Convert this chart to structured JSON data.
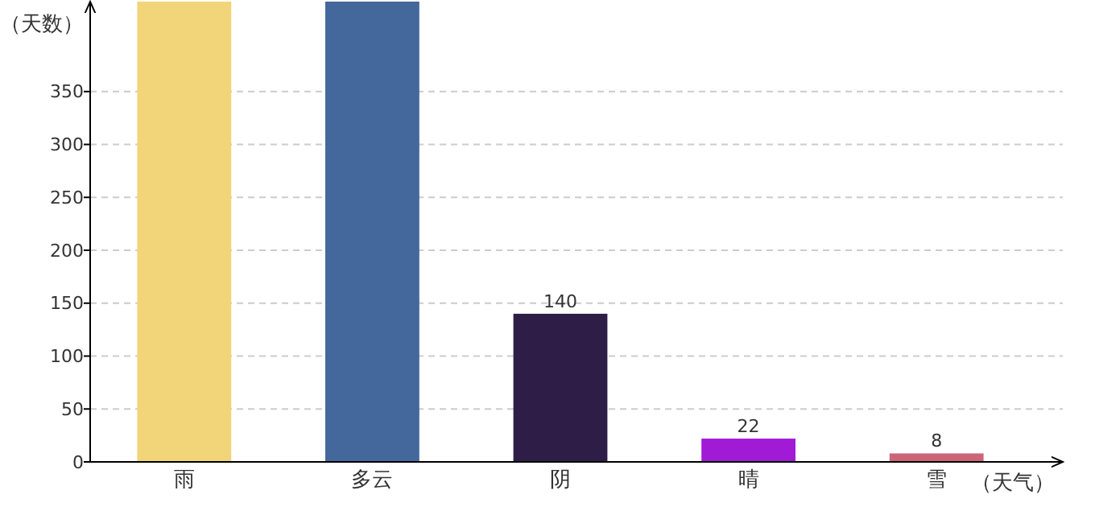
{
  "chart_data": {
    "type": "bar",
    "xlabel": "（天气）",
    "ylabel": "（天数）",
    "categories": [
      "雨",
      "多云",
      "阴",
      "晴",
      "雪"
    ],
    "values": [
      435,
      435,
      140,
      22,
      8
    ],
    "colors": [
      "#f2d479",
      "#44679c",
      "#2e1e47",
      "#a11ad6",
      "#cc6577"
    ],
    "value_labels": [
      null,
      null,
      "140",
      "22",
      "8"
    ],
    "ylim": [
      0,
      435
    ],
    "yticks": [
      0,
      50,
      100,
      150,
      200,
      250,
      300,
      350
    ],
    "grid": "y"
  }
}
